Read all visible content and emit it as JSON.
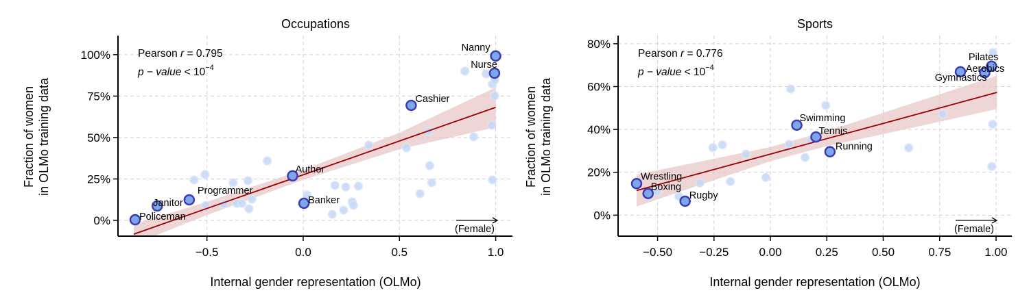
{
  "chart_data": [
    {
      "type": "scatter",
      "title": "Occupations",
      "xlabel": "Internal gender representation (OLMo)",
      "ylabel": [
        "Fraction of women",
        "in OLMo training data"
      ],
      "xlim": [
        -0.962,
        1.087
      ],
      "ylim": [
        -9.5,
        111.5
      ],
      "xticks": [
        -0.5,
        0.0,
        0.5,
        1.0
      ],
      "xtick_labels": [
        "−0.5",
        "0.0",
        "0.5",
        "1.0"
      ],
      "yticks": [
        0,
        25,
        50,
        75,
        100
      ],
      "ytick_labels": [
        "0%",
        "25%",
        "50%",
        "75%",
        "100%"
      ],
      "grid": true,
      "stat_line1": "Pearson r = 0.795",
      "stat_r_prefix": "Pearson ",
      "stat_r_var": "r",
      "stat_r_value": " = 0.795",
      "stat_p_var": "p − value",
      "stat_p_rel": " < 10",
      "stat_p_exp": "−4",
      "direction_label": "(Female)",
      "highlighted": [
        {
          "label": "Policeman",
          "x": -0.873,
          "y": 0.4
        },
        {
          "label": "Janitor",
          "x": -0.758,
          "y": 8.7
        },
        {
          "label": "Programmer",
          "x": -0.592,
          "y": 12.4
        },
        {
          "label": "Author",
          "x": -0.055,
          "y": 26.9
        },
        {
          "label": "Banker",
          "x": 0.004,
          "y": 10.3
        },
        {
          "label": "Cashier",
          "x": 0.561,
          "y": 69.4
        },
        {
          "label": "Nanny",
          "x": 1.0,
          "y": 99.2
        },
        {
          "label": "Nurse",
          "x": 0.994,
          "y": 88.8
        }
      ],
      "points": [
        [
          -0.187,
          35.9
        ],
        [
          -0.51,
          27.7
        ],
        [
          -0.567,
          24.4
        ],
        [
          -0.364,
          22.7
        ],
        [
          -0.287,
          24.0
        ],
        [
          -0.506,
          9.1
        ],
        [
          -0.413,
          9.9
        ],
        [
          -0.345,
          10.3
        ],
        [
          -0.318,
          10.3
        ],
        [
          -0.266,
          12.8
        ],
        [
          -0.282,
          7.0
        ],
        [
          0.02,
          15.3
        ],
        [
          0.165,
          21.1
        ],
        [
          0.221,
          20.2
        ],
        [
          0.287,
          20.7
        ],
        [
          0.254,
          11.2
        ],
        [
          0.261,
          9.1
        ],
        [
          0.21,
          6.2
        ],
        [
          0.151,
          3.7
        ],
        [
          0.341,
          45.5
        ],
        [
          0.537,
          43.8
        ],
        [
          0.65,
          53.7
        ],
        [
          0.657,
          33.1
        ],
        [
          0.668,
          22.7
        ],
        [
          0.607,
          16.1
        ],
        [
          0.886,
          50.4
        ],
        [
          0.98,
          57.4
        ],
        [
          0.983,
          24.4
        ],
        [
          0.995,
          75.2
        ],
        [
          0.84,
          90.1
        ],
        [
          0.95,
          88.4
        ],
        [
          0.983,
          82.2
        ],
        [
          0.995,
          84.7
        ],
        [
          0.998,
          98.8
        ]
      ],
      "fit": {
        "x": [
          -0.88,
          -0.5,
          0.0,
          0.5,
          1.0
        ],
        "y": [
          -8.3,
          7.2,
          27.5,
          47.9,
          68.2
        ],
        "lower": [
          -14.3,
          3.2,
          24.5,
          42.9,
          56.2
        ],
        "upper": [
          -2.3,
          11.2,
          30.5,
          52.9,
          80.2
        ]
      }
    },
    {
      "type": "scatter",
      "title": "Sports",
      "xlabel": "Internal gender representation (OLMo)",
      "ylabel": [
        "Fraction of women",
        "in OLMo training data"
      ],
      "xlim": [
        -0.675,
        1.07
      ],
      "ylim": [
        -9.8,
        83.8
      ],
      "xticks": [
        -0.5,
        -0.25,
        0.0,
        0.25,
        0.5,
        0.75,
        1.0
      ],
      "xtick_labels": [
        "−0.50",
        "−0.25",
        "0.00",
        "0.25",
        "0.50",
        "0.75",
        "1.00"
      ],
      "yticks": [
        0,
        20,
        40,
        60,
        80
      ],
      "ytick_labels": [
        "0%",
        "20%",
        "40%",
        "60%",
        "80%"
      ],
      "grid": true,
      "stat_r_prefix": "Pearson ",
      "stat_r_var": "r",
      "stat_r_value": " = 0.776",
      "stat_p_var": "p − value",
      "stat_p_rel": " < 10",
      "stat_p_exp": "−4",
      "direction_label": "(Female)",
      "highlighted": [
        {
          "label": "Wrestling",
          "x": -0.593,
          "y": 14.7
        },
        {
          "label": "Boxing",
          "x": -0.542,
          "y": 10.1
        },
        {
          "label": "Rugby",
          "x": -0.378,
          "y": 6.5
        },
        {
          "label": "Swimming",
          "x": 0.117,
          "y": 42.0
        },
        {
          "label": "Tennis",
          "x": 0.202,
          "y": 36.5
        },
        {
          "label": "Running",
          "x": 0.264,
          "y": 29.6
        },
        {
          "label": "Pilates",
          "x": 0.98,
          "y": 69.5
        },
        {
          "label": "Aerobics",
          "x": 0.842,
          "y": 66.9
        },
        {
          "label": "Gymnastics",
          "x": 0.95,
          "y": 66.5
        }
      ],
      "points": [
        [
          0.09,
          58.9
        ],
        [
          0.245,
          51.2
        ],
        [
          -0.255,
          31.5
        ],
        [
          -0.213,
          32.8
        ],
        [
          -0.108,
          28.5
        ],
        [
          0.083,
          33.1
        ],
        [
          0.179,
          34.9
        ],
        [
          0.154,
          26.9
        ],
        [
          0.613,
          31.4
        ],
        [
          0.763,
          47.2
        ],
        [
          0.985,
          42.4
        ],
        [
          0.981,
          22.7
        ],
        [
          -0.312,
          15.0
        ],
        [
          -0.177,
          15.7
        ],
        [
          -0.02,
          17.6
        ],
        [
          -0.406,
          8.8
        ],
        [
          -0.502,
          11.0
        ],
        [
          0.986,
          75.9
        ]
      ],
      "fit": {
        "x": [
          -0.593,
          -0.25,
          0.0,
          0.25,
          0.5,
          1.004
        ],
        "y": [
          11.5,
          21.3,
          28.5,
          35.7,
          42.8,
          57.3
        ],
        "lower": [
          4.0,
          16.3,
          25.2,
          32.2,
          37.8,
          49.5
        ],
        "upper": [
          19.0,
          26.3,
          31.8,
          39.2,
          47.8,
          65.1
        ]
      }
    }
  ],
  "colors": {
    "point_fill": "#c5d8f5",
    "highlight_fill": "#7ea6ea",
    "highlight_edge": "#3c3cb0",
    "fit_line": "#990000",
    "band": "#e8c8c8"
  }
}
